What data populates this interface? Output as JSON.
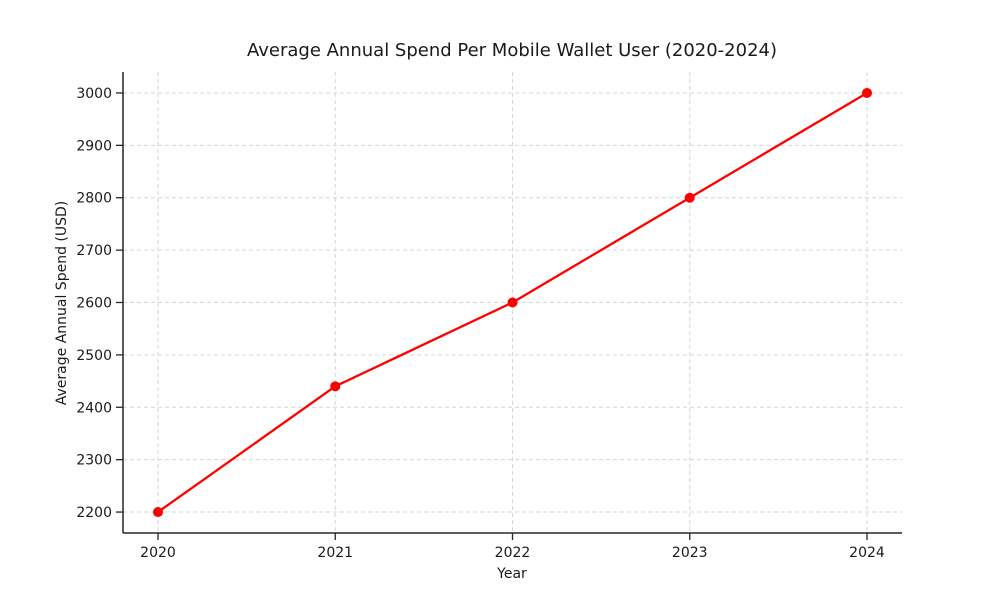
{
  "figure": {
    "background": "#ffffff"
  },
  "chart_data": {
    "type": "line",
    "title": "Average Annual Spend Per Mobile Wallet User (2020-2024)",
    "xlabel": "Year",
    "ylabel": "Average Annual Spend (USD)",
    "categories": [
      2020,
      2021,
      2022,
      2023,
      2024
    ],
    "series": [
      {
        "name": "Average Annual Spend",
        "values": [
          2200,
          2440,
          2600,
          2800,
          3000
        ],
        "color": "#ff0000",
        "marker": "circle"
      }
    ],
    "yticks": [
      2200,
      2300,
      2400,
      2500,
      2600,
      2700,
      2800,
      2900,
      3000
    ],
    "ylim": [
      2160,
      3040
    ],
    "grid": true,
    "grid_style": "dashed",
    "legend_position": "none",
    "colors": {
      "line": "#ff0000",
      "marker": "#ff0000",
      "grid": "#d6d6d6",
      "axis": "#262626",
      "text": "#1a1a1a"
    }
  }
}
